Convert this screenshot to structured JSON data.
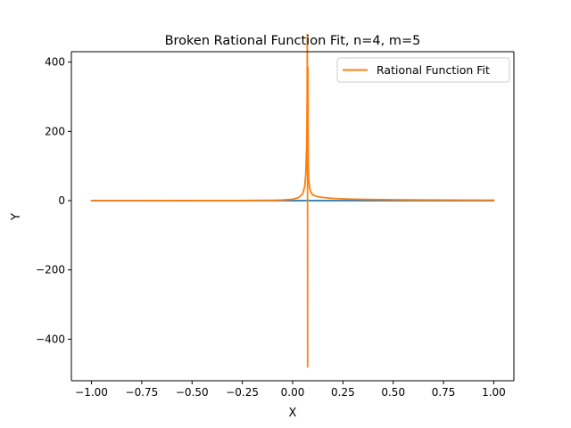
{
  "chart_data": {
    "type": "line",
    "title": "Broken Rational Function Fit, n=4, m=5",
    "xlabel": "X",
    "ylabel": "Y",
    "xlim": [
      -1.1,
      1.1
    ],
    "ylim": [
      -520,
      430
    ],
    "x_ticks": [
      -1.0,
      -0.75,
      -0.5,
      -0.25,
      0.0,
      0.25,
      0.5,
      0.75,
      1.0
    ],
    "x_tick_labels": [
      "−1.00",
      "−0.75",
      "−0.50",
      "−0.25",
      "0.00",
      "0.25",
      "0.50",
      "0.75",
      "1.00"
    ],
    "y_ticks": [
      -400,
      -200,
      0,
      200,
      400
    ],
    "y_tick_labels": [
      "−400",
      "−200",
      "0",
      "200",
      "400"
    ],
    "grid": false,
    "legend_position": "upper right",
    "series": [
      {
        "color": "#1f77b4",
        "x": [
          -1.0,
          -0.5,
          0.0,
          0.5,
          1.0
        ],
        "y": [
          0,
          0,
          0,
          0,
          0
        ]
      },
      {
        "name": "Rational Function Fit",
        "color": "#ff7f0e",
        "pole_x": 0.075,
        "x": [
          -1.0,
          -0.8,
          -0.6,
          -0.4,
          -0.3,
          -0.2,
          -0.15,
          -0.1,
          -0.05,
          0.0,
          0.03,
          0.05,
          0.06,
          0.065,
          0.07,
          0.072,
          0.073,
          0.074,
          0.076,
          0.077,
          0.078,
          0.08,
          0.085,
          0.09,
          0.1,
          0.12,
          0.15,
          0.2,
          0.25,
          0.3,
          0.4,
          0.5,
          0.6,
          0.8,
          1.0
        ],
        "y": [
          0.1,
          0.1,
          0.2,
          0.3,
          0.4,
          0.6,
          0.8,
          1.1,
          2.0,
          4.0,
          9.0,
          20.0,
          40.0,
          75.0,
          160.0,
          300.0,
          480.0,
          120.0,
          385.0,
          180.0,
          100.0,
          60.0,
          35.0,
          25.0,
          17.0,
          12.0,
          9.0,
          6.5,
          5.2,
          4.3,
          3.2,
          2.6,
          2.2,
          1.6,
          1.3
        ]
      }
    ]
  }
}
